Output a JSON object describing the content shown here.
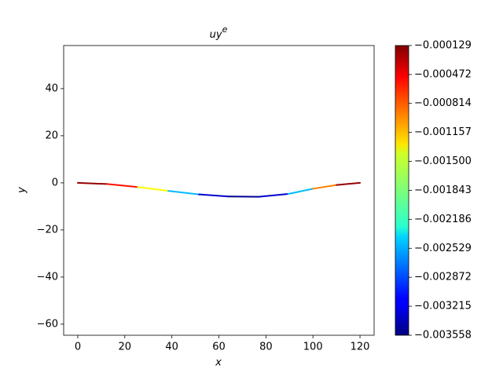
{
  "chart_data": {
    "type": "colored_line",
    "title": "uy",
    "title_superscript": "e",
    "xlabel": "x",
    "ylabel": "y",
    "x": [
      0,
      12.5,
      25.5,
      38.5,
      51.5,
      64,
      77,
      89.5,
      100,
      110,
      120
    ],
    "y": [
      0,
      -0.5,
      -1.8,
      -3.4,
      -4.9,
      -5.8,
      -5.9,
      -4.7,
      -2.5,
      -0.9,
      0
    ],
    "element_values": [
      -0.0002,
      -0.0006,
      -0.0014,
      -0.0025,
      -0.0033,
      -0.0035,
      -0.0033,
      -0.0025,
      -0.001,
      -0.0002
    ],
    "colormap": "jet",
    "xlim": [
      -6,
      126
    ],
    "ylim": [
      -64.7,
      58.3
    ],
    "xticks": [
      0,
      20,
      40,
      60,
      80,
      100,
      120
    ],
    "yticks": [
      {
        "value": -60,
        "label": "−60"
      },
      {
        "value": -40,
        "label": "−40"
      },
      {
        "value": -20,
        "label": "−20"
      },
      0,
      20,
      40
    ],
    "clim": [
      -0.003558,
      -0.000129
    ],
    "cticks": [
      {
        "value": -0.003558,
        "label": "−0.003558"
      },
      {
        "value": -0.003215,
        "label": "−0.003215"
      },
      {
        "value": -0.002872,
        "label": "−0.002872"
      },
      {
        "value": -0.002529,
        "label": "−0.002529"
      },
      {
        "value": -0.002186,
        "label": "−0.002186"
      },
      {
        "value": -0.001843,
        "label": "−0.001843"
      },
      {
        "value": -0.0015,
        "label": "−0.001500"
      },
      {
        "value": -0.001157,
        "label": "−0.001157"
      },
      {
        "value": -0.000814,
        "label": "−0.000814"
      },
      {
        "value": -0.000472,
        "label": "−0.000472"
      },
      {
        "value": -0.000129,
        "label": "−0.000129"
      }
    ]
  }
}
